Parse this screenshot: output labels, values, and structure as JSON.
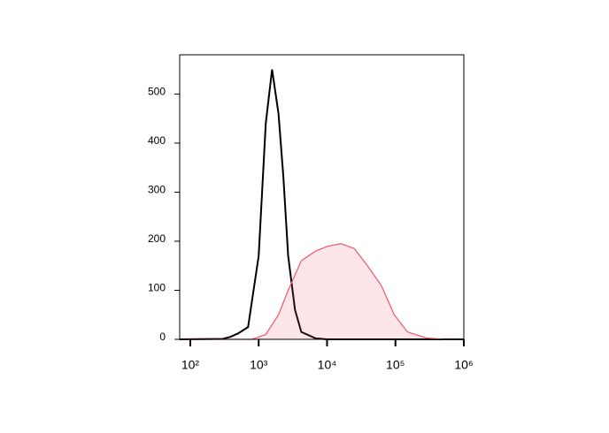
{
  "chart_data": {
    "type": "histogram-overlay",
    "xscale": "log",
    "xlim": [
      70,
      1000000
    ],
    "ylim": [
      0,
      580
    ],
    "yticks": [
      0,
      100,
      200,
      300,
      400,
      500
    ],
    "xticks": [
      {
        "value": 100,
        "label": "10²"
      },
      {
        "value": 1000,
        "label": "10³"
      },
      {
        "value": 10000,
        "label": "10⁴"
      },
      {
        "value": 100000,
        "label": "10⁵"
      },
      {
        "value": 1000000,
        "label": "10⁶"
      }
    ],
    "series": [
      {
        "color": "#000000",
        "fill": false,
        "x": [
          70,
          300,
          385,
          500,
          700,
          1000,
          1270,
          1570,
          1950,
          2300,
          2700,
          3400,
          4200,
          6800,
          10000,
          100000,
          1000000
        ],
        "values": [
          0,
          1,
          5,
          12,
          25,
          170,
          440,
          550,
          460,
          330,
          170,
          60,
          15,
          2,
          0,
          0,
          0
        ]
      },
      {
        "color": "#f0566e",
        "fill": true,
        "x": [
          70,
          800,
          1270,
          1950,
          2700,
          4200,
          6800,
          10300,
          16000,
          25000,
          39000,
          62000,
          96000,
          150000,
          280000,
          500000,
          1000000
        ],
        "values": [
          0,
          0,
          10,
          50,
          100,
          160,
          180,
          190,
          195,
          185,
          150,
          110,
          50,
          15,
          3,
          0,
          0
        ]
      }
    ]
  }
}
